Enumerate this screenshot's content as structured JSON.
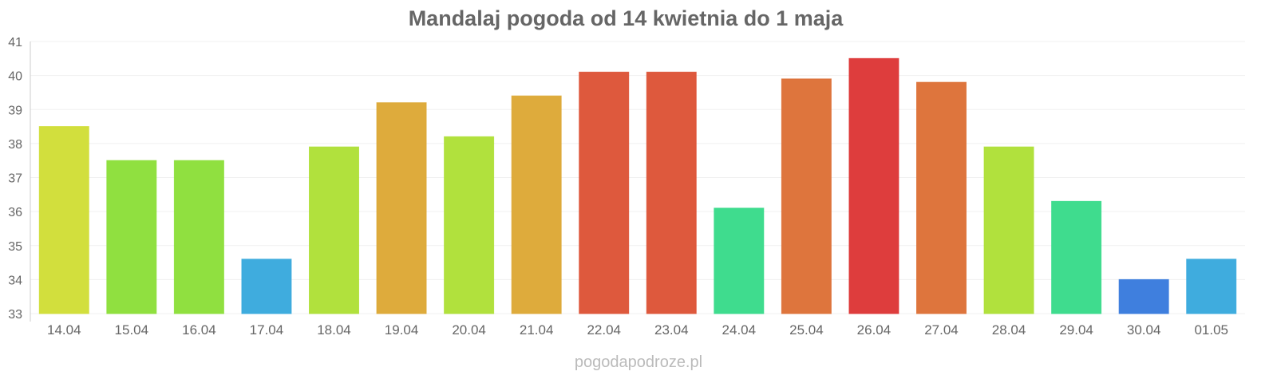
{
  "chart_data": {
    "type": "bar",
    "title": "Mandalaj pogoda od 14 kwietnia do 1 maja",
    "xlabel": "",
    "ylabel": "",
    "ylim": [
      33,
      41
    ],
    "yticks": [
      33,
      34,
      35,
      36,
      37,
      38,
      39,
      40,
      41
    ],
    "grid": true,
    "categories": [
      "14.04",
      "15.04",
      "16.04",
      "17.04",
      "18.04",
      "19.04",
      "20.04",
      "21.04",
      "22.04",
      "23.04",
      "24.04",
      "25.04",
      "26.04",
      "27.04",
      "28.04",
      "29.04",
      "30.04",
      "01.05"
    ],
    "values": [
      38.5,
      37.5,
      37.5,
      34.6,
      37.9,
      39.2,
      38.2,
      39.4,
      40.1,
      40.1,
      36.1,
      39.9,
      40.5,
      39.8,
      37.9,
      36.3,
      34.0,
      34.6
    ],
    "colors": [
      "#d0dd33",
      "#8ade36",
      "#8ade36",
      "#35a8dc",
      "#addf33",
      "#dca632",
      "#addf33",
      "#dca632",
      "#dc5033",
      "#dc5033",
      "#35da88",
      "#dc6e33",
      "#dc3333",
      "#dc6e33",
      "#addf33",
      "#35da88",
      "#3578dc",
      "#35a8dc"
    ]
  },
  "watermark": "pogodapodroze.pl"
}
